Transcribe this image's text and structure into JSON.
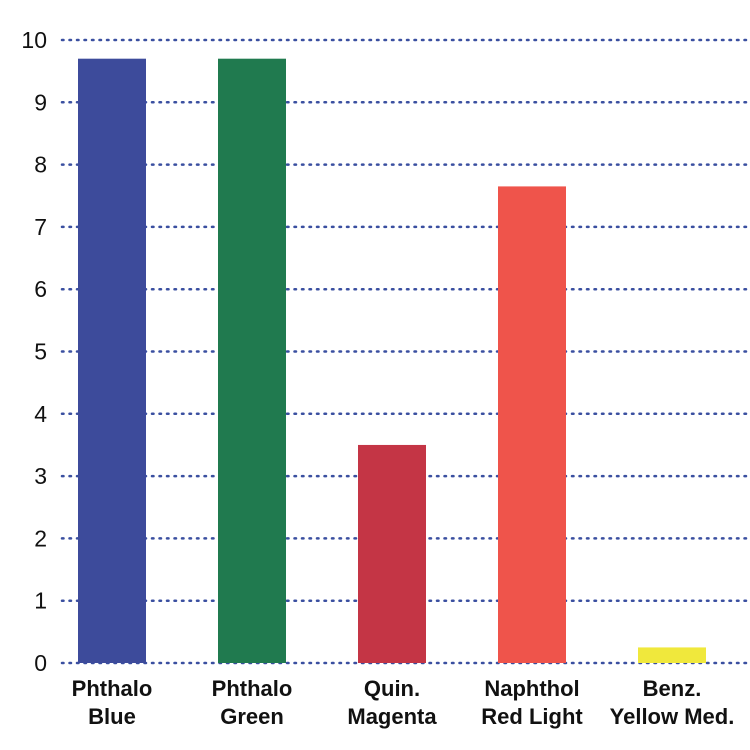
{
  "chart_data": {
    "type": "bar",
    "categories": [
      [
        "Phthalo",
        "Blue"
      ],
      [
        "Phthalo",
        "Green"
      ],
      [
        "Quin.",
        "Magenta"
      ],
      [
        "Naphthol",
        "Red Light"
      ],
      [
        "Benz.",
        "Yellow Med."
      ]
    ],
    "values": [
      9.7,
      9.7,
      3.5,
      7.65,
      0.25
    ],
    "colors": [
      "#3d4b9b",
      "#207a4f",
      "#c43545",
      "#ef544b",
      "#f0e83c"
    ],
    "grid_color": "#3a4fa0",
    "ylim": [
      0,
      10
    ],
    "yticks": [
      0,
      1,
      2,
      3,
      4,
      5,
      6,
      7,
      8,
      9,
      10
    ],
    "grid": true,
    "title": "",
    "xlabel": "",
    "ylabel": ""
  }
}
